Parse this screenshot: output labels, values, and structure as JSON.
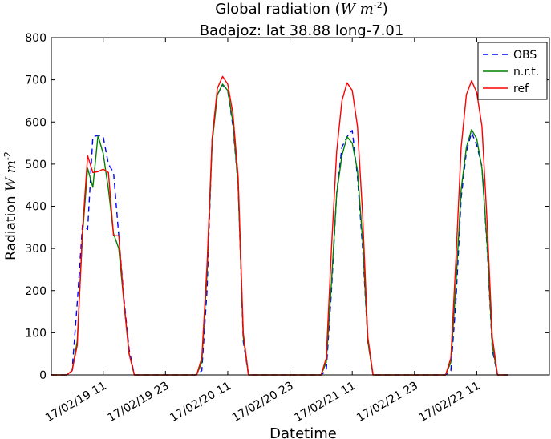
{
  "chart_data": {
    "type": "line",
    "title_main": "Global radiation ",
    "title_unit_var": "W m",
    "title_unit_exp": "-2",
    "subtitle": "Badajoz: lat 38.88 long-7.01",
    "xlabel": "Datetime",
    "ylabel_text": "Radiation ",
    "ylabel_unit_var": "W m",
    "ylabel_unit_exp": "-2",
    "ylim": [
      0,
      800
    ],
    "xlim": [
      0,
      96
    ],
    "yticks": [
      0,
      100,
      200,
      300,
      400,
      500,
      600,
      700,
      800
    ],
    "xtick_positions": [
      10,
      22,
      34,
      46,
      58,
      70,
      82
    ],
    "xtick_labels": [
      "17/02/19 11",
      "17/02/19 23",
      "17/02/20 11",
      "17/02/20 23",
      "17/02/21 11",
      "17/02/21 23",
      "17/02/22 11"
    ],
    "legend_position": "top-right",
    "series": [
      {
        "name": "OBS",
        "color": "#0000ff",
        "style": "dashed",
        "points": [
          [
            0,
            0
          ],
          [
            3,
            0
          ],
          [
            4,
            10
          ],
          [
            5,
            170
          ],
          [
            6,
            355
          ],
          [
            7,
            345
          ],
          [
            8,
            565
          ],
          [
            9,
            568
          ],
          [
            10,
            565
          ],
          [
            11,
            500
          ],
          [
            12,
            480
          ],
          [
            13,
            330
          ],
          [
            14,
            180
          ],
          [
            15,
            60
          ],
          [
            16,
            0
          ],
          [
            28,
            0
          ],
          [
            29,
            10
          ],
          [
            30,
            200
          ],
          [
            31,
            560
          ],
          [
            32,
            665
          ],
          [
            33,
            688
          ],
          [
            34,
            675
          ],
          [
            35,
            590
          ],
          [
            36,
            450
          ],
          [
            37,
            80
          ],
          [
            38,
            0
          ],
          [
            52,
            0
          ],
          [
            53,
            10
          ],
          [
            54,
            200
          ],
          [
            55,
            430
          ],
          [
            56,
            540
          ],
          [
            57,
            565
          ],
          [
            58,
            580
          ],
          [
            59,
            470
          ],
          [
            60,
            300
          ],
          [
            61,
            80
          ],
          [
            62,
            0
          ],
          [
            76,
            0
          ],
          [
            77,
            10
          ],
          [
            78,
            180
          ],
          [
            79,
            420
          ],
          [
            80,
            530
          ],
          [
            81,
            575
          ],
          [
            82,
            545
          ],
          [
            83,
            495
          ],
          [
            84,
            300
          ],
          [
            85,
            60
          ],
          [
            86,
            0
          ],
          [
            88,
            0
          ]
        ]
      },
      {
        "name": "n.r.t.",
        "color": "#008000",
        "style": "solid",
        "points": [
          [
            0,
            0
          ],
          [
            3,
            0
          ],
          [
            4,
            10
          ],
          [
            5,
            80
          ],
          [
            6,
            330
          ],
          [
            7,
            490
          ],
          [
            8,
            445
          ],
          [
            9,
            568
          ],
          [
            10,
            525
          ],
          [
            11,
            440
          ],
          [
            12,
            335
          ],
          [
            13,
            300
          ],
          [
            14,
            170
          ],
          [
            15,
            50
          ],
          [
            16,
            0
          ],
          [
            28,
            0
          ],
          [
            29,
            30
          ],
          [
            30,
            240
          ],
          [
            31,
            550
          ],
          [
            32,
            665
          ],
          [
            33,
            690
          ],
          [
            34,
            675
          ],
          [
            35,
            600
          ],
          [
            36,
            450
          ],
          [
            37,
            90
          ],
          [
            38,
            0
          ],
          [
            52,
            0
          ],
          [
            53,
            30
          ],
          [
            54,
            220
          ],
          [
            55,
            430
          ],
          [
            56,
            520
          ],
          [
            57,
            565
          ],
          [
            58,
            550
          ],
          [
            59,
            485
          ],
          [
            60,
            320
          ],
          [
            61,
            80
          ],
          [
            62,
            0
          ],
          [
            76,
            0
          ],
          [
            77,
            30
          ],
          [
            78,
            220
          ],
          [
            79,
            440
          ],
          [
            80,
            540
          ],
          [
            81,
            582
          ],
          [
            82,
            560
          ],
          [
            83,
            490
          ],
          [
            84,
            310
          ],
          [
            85,
            70
          ],
          [
            86,
            0
          ],
          [
            88,
            0
          ]
        ]
      },
      {
        "name": "ref",
        "color": "#ff0000",
        "style": "solid",
        "points": [
          [
            0,
            0
          ],
          [
            3,
            0
          ],
          [
            4,
            10
          ],
          [
            5,
            70
          ],
          [
            6,
            340
          ],
          [
            7,
            520
          ],
          [
            8,
            480
          ],
          [
            9,
            482
          ],
          [
            10,
            488
          ],
          [
            11,
            480
          ],
          [
            12,
            330
          ],
          [
            13,
            330
          ],
          [
            14,
            170
          ],
          [
            15,
            50
          ],
          [
            16,
            0
          ],
          [
            28,
            0
          ],
          [
            29,
            40
          ],
          [
            30,
            260
          ],
          [
            31,
            560
          ],
          [
            32,
            680
          ],
          [
            33,
            708
          ],
          [
            34,
            690
          ],
          [
            35,
            620
          ],
          [
            36,
            470
          ],
          [
            37,
            100
          ],
          [
            38,
            0
          ],
          [
            52,
            0
          ],
          [
            53,
            40
          ],
          [
            54,
            300
          ],
          [
            55,
            530
          ],
          [
            56,
            650
          ],
          [
            57,
            693
          ],
          [
            58,
            675
          ],
          [
            59,
            590
          ],
          [
            60,
            380
          ],
          [
            61,
            90
          ],
          [
            62,
            0
          ],
          [
            76,
            0
          ],
          [
            77,
            40
          ],
          [
            78,
            280
          ],
          [
            79,
            540
          ],
          [
            80,
            665
          ],
          [
            81,
            698
          ],
          [
            82,
            670
          ],
          [
            83,
            590
          ],
          [
            84,
            360
          ],
          [
            85,
            90
          ],
          [
            86,
            0
          ],
          [
            88,
            0
          ]
        ]
      }
    ]
  }
}
